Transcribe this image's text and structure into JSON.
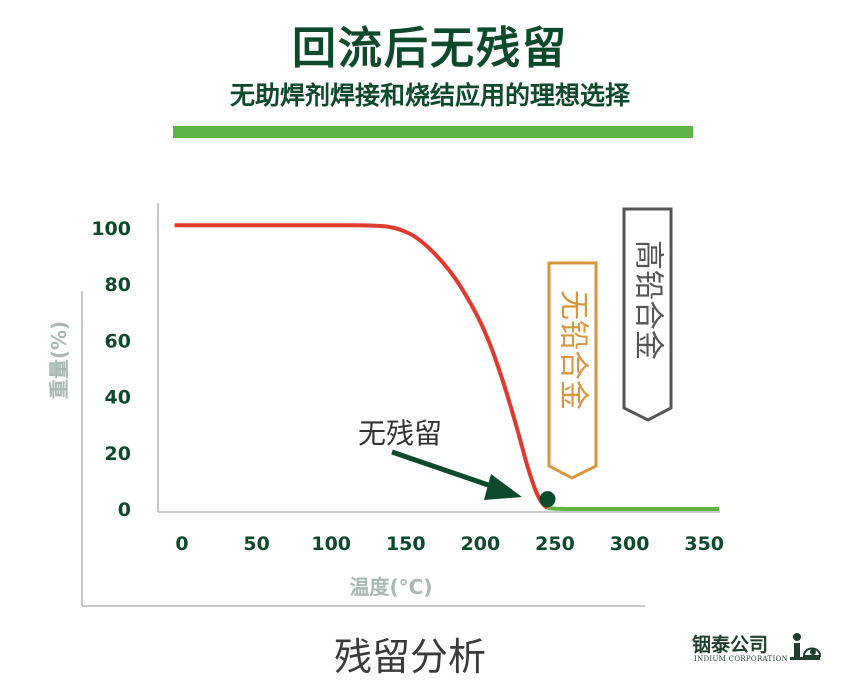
{
  "header": {
    "title": "回流后无残留",
    "subtitle": "无助焊剂焊接和烧结应用的理想选择"
  },
  "chart_data": {
    "type": "line",
    "xlabel": "温度(°C)",
    "ylabel": "重量(%)",
    "xlim": [
      0,
      360
    ],
    "ylim": [
      0,
      100
    ],
    "x_ticks": [
      "0",
      "50",
      "100",
      "150",
      "200",
      "250",
      "300",
      "350"
    ],
    "y_ticks": [
      "0",
      "20",
      "40",
      "60",
      "80",
      "100"
    ],
    "grid": false,
    "series": [
      {
        "color": "#e03a2f",
        "x": [
          -5,
          50,
          100,
          130,
          145,
          160,
          180,
          195,
          205,
          215,
          225,
          232,
          238,
          242,
          245
        ],
        "y": [
          101,
          101,
          101,
          101,
          100,
          96,
          85,
          72,
          61,
          46,
          28,
          14,
          5,
          1.5,
          0.3
        ]
      },
      {
        "color": "#5db343",
        "x": [
          245,
          250,
          260,
          280,
          320,
          360
        ],
        "y": [
          0.3,
          0.1,
          0,
          0,
          0,
          0
        ]
      }
    ],
    "marker": {
      "x": 245,
      "y": 0.3
    },
    "annotations": {
      "no_residue": "无残留",
      "lead_free": "无铅合金",
      "high_lead": "高铅合金"
    },
    "colors": {
      "lead_free": "#d6953e",
      "high_lead": "#555555"
    }
  },
  "footer": {
    "caption": "残留分析",
    "logo_cn": "铟泰公司",
    "logo_en": "INDIUM CORPORATION"
  }
}
